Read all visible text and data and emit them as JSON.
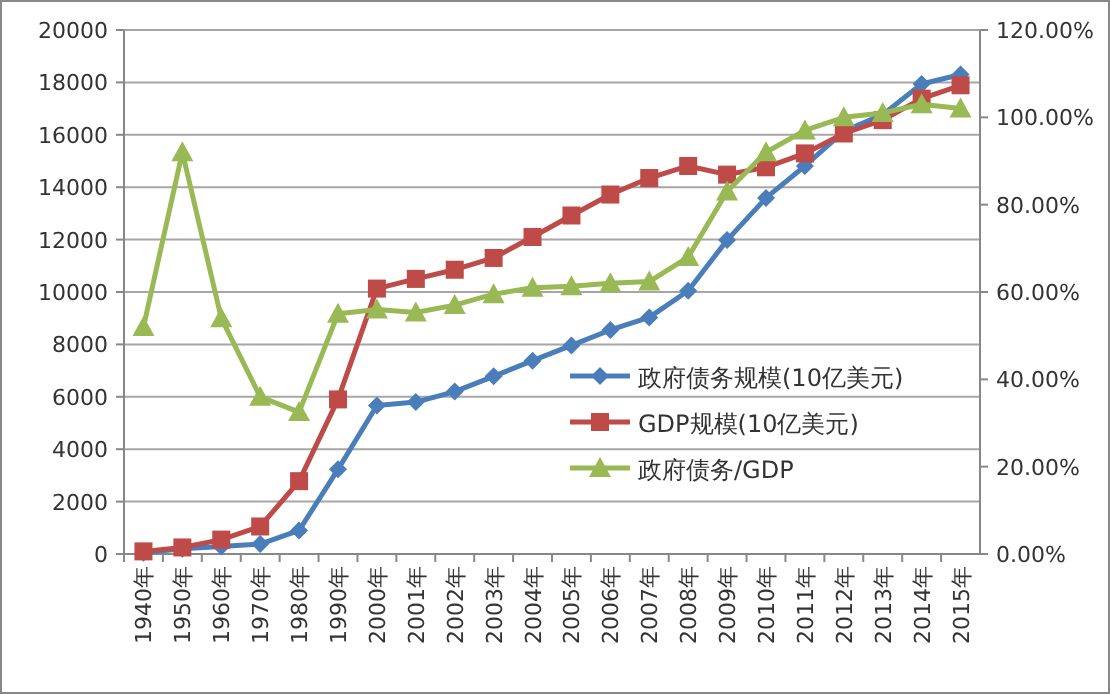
{
  "chart_data": {
    "type": "line",
    "categories": [
      "1940年",
      "1950年",
      "1960年",
      "1970年",
      "1980年",
      "1990年",
      "2000年",
      "2001年",
      "2002年",
      "2003年",
      "2004年",
      "2005年",
      "2006年",
      "2007年",
      "2008年",
      "2009年",
      "2010年",
      "2011年",
      "2012年",
      "2013年",
      "2014年",
      "2015年"
    ],
    "series": [
      {
        "name": "政府债务规模(10亿美元)",
        "color": "#4a7ebb",
        "marker": "diamond",
        "values": [
          50,
          200,
          290,
          380,
          900,
          3230,
          5670,
          5800,
          6200,
          6780,
          7380,
          7960,
          8550,
          9030,
          10050,
          11980,
          13590,
          14810,
          16130,
          16770,
          17940,
          18300
        ]
      },
      {
        "name": "GDP规模(10亿美元)",
        "color": "#be4b48",
        "marker": "square",
        "values": [
          100,
          250,
          550,
          1050,
          2780,
          5900,
          10130,
          10500,
          10850,
          11300,
          12100,
          12920,
          13720,
          14350,
          14810,
          14480,
          14760,
          15290,
          16050,
          16560,
          17380,
          17890
        ]
      },
      {
        "name": "政府债务/GDP",
        "color": "#98b954",
        "marker": "triangle",
        "axis": "y2",
        "values": [
          52,
          92,
          54,
          36,
          32.5,
          55,
          56,
          55.3,
          57,
          59.5,
          61,
          61.3,
          62,
          62.4,
          68,
          83,
          92,
          97,
          100,
          101,
          103,
          102
        ]
      }
    ],
    "ylim": [
      0,
      20000
    ],
    "yticks": [
      0,
      2000,
      4000,
      6000,
      8000,
      10000,
      12000,
      14000,
      16000,
      18000,
      20000
    ],
    "y2lim": [
      0,
      120
    ],
    "y2ticks": [
      {
        "value": 0,
        "label": "0.00%"
      },
      {
        "value": 20,
        "label": "20.00%"
      },
      {
        "value": 40,
        "label": "40.00%"
      },
      {
        "value": 60,
        "label": "60.00%"
      },
      {
        "value": 80,
        "label": "80.00%"
      },
      {
        "value": 100,
        "label": "100.00%"
      },
      {
        "value": 120,
        "label": "120.00%"
      }
    ],
    "grid": "y",
    "legend": "bottom right",
    "line_style": "solid"
  }
}
